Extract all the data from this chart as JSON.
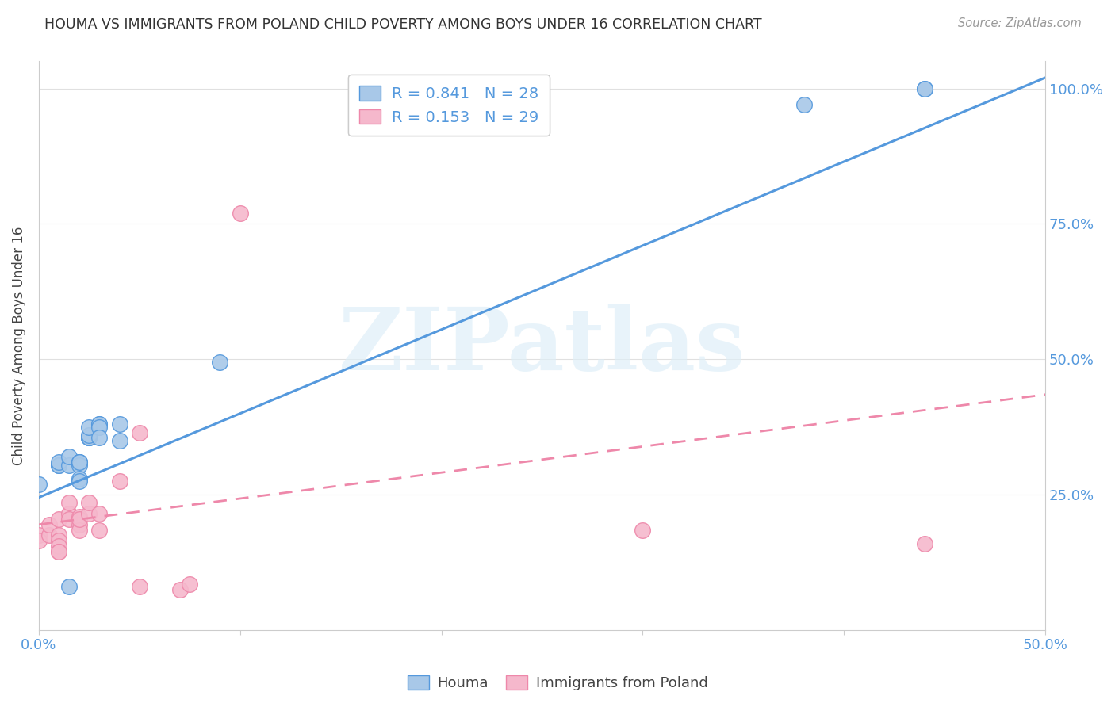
{
  "title": "HOUMA VS IMMIGRANTS FROM POLAND CHILD POVERTY AMONG BOYS UNDER 16 CORRELATION CHART",
  "source": "Source: ZipAtlas.com",
  "ylabel": "Child Poverty Among Boys Under 16",
  "xlim": [
    0.0,
    0.5
  ],
  "ylim": [
    0.0,
    1.05
  ],
  "houma_R": "0.841",
  "houma_N": "28",
  "poland_R": "0.153",
  "poland_N": "29",
  "houma_color": "#a8c8e8",
  "poland_color": "#f5b8cc",
  "houma_line_color": "#5599dd",
  "poland_line_color": "#ee88aa",
  "tick_color": "#5599dd",
  "grid_color": "#e0e0e0",
  "spine_color": "#cccccc",
  "watermark": "ZIPatlas",
  "houma_line": [
    0.0,
    0.245,
    0.5,
    1.02
  ],
  "poland_line": [
    0.0,
    0.195,
    0.5,
    0.435
  ],
  "houma_x": [
    0.0,
    0.01,
    0.01,
    0.01,
    0.015,
    0.015,
    0.02,
    0.02,
    0.02,
    0.02,
    0.02,
    0.02,
    0.025,
    0.025,
    0.025,
    0.025,
    0.025,
    0.03,
    0.03,
    0.03,
    0.03,
    0.04,
    0.04,
    0.09,
    0.38,
    0.44,
    0.44,
    0.015
  ],
  "houma_y": [
    0.27,
    0.305,
    0.305,
    0.31,
    0.305,
    0.32,
    0.31,
    0.31,
    0.305,
    0.31,
    0.28,
    0.275,
    0.355,
    0.355,
    0.355,
    0.36,
    0.375,
    0.38,
    0.38,
    0.375,
    0.355,
    0.38,
    0.35,
    0.495,
    0.97,
    1.0,
    1.0,
    0.08
  ],
  "poland_x": [
    0.0,
    0.0,
    0.005,
    0.005,
    0.01,
    0.01,
    0.01,
    0.01,
    0.01,
    0.01,
    0.015,
    0.015,
    0.015,
    0.02,
    0.02,
    0.02,
    0.02,
    0.025,
    0.025,
    0.03,
    0.03,
    0.04,
    0.05,
    0.05,
    0.07,
    0.075,
    0.1,
    0.3,
    0.44
  ],
  "poland_y": [
    0.175,
    0.165,
    0.175,
    0.195,
    0.175,
    0.165,
    0.155,
    0.145,
    0.145,
    0.205,
    0.215,
    0.205,
    0.235,
    0.195,
    0.21,
    0.185,
    0.205,
    0.215,
    0.235,
    0.215,
    0.185,
    0.275,
    0.365,
    0.08,
    0.075,
    0.085,
    0.77,
    0.185,
    0.16
  ],
  "bottom_legend_labels": [
    "Houma",
    "Immigrants from Poland"
  ]
}
